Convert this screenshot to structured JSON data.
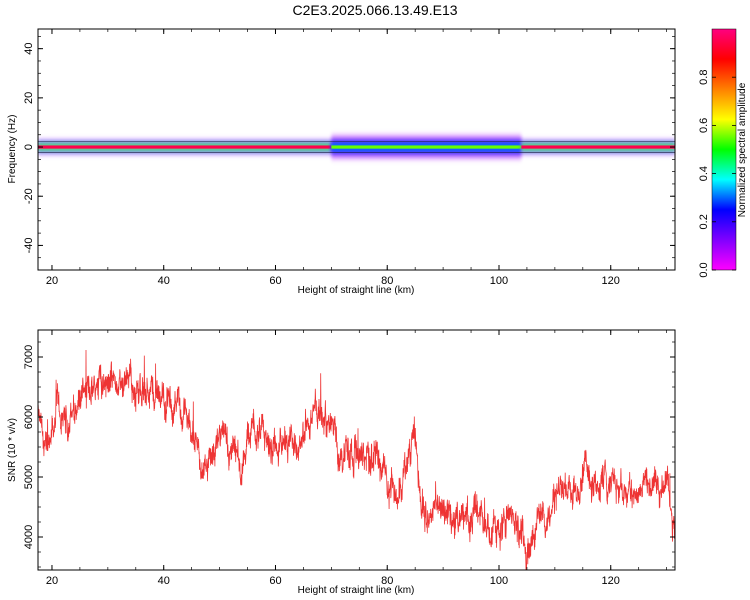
{
  "title": "C2E3.2025.066.13.49.E13",
  "chart_data": [
    {
      "type": "heatmap",
      "title": "",
      "xlabel": "Height of straight line (km)",
      "ylabel": "Frequency (Hz)",
      "xlim": [
        17.5,
        131.5
      ],
      "ylim": [
        -50,
        48
      ],
      "xticks": [
        20,
        40,
        60,
        80,
        100,
        120
      ],
      "yticks": [
        -40,
        -20,
        0,
        20,
        40
      ],
      "colorbar": {
        "label": "Normalized spectral amplitude",
        "range": [
          0.0,
          1.0
        ],
        "ticks": [
          0.0,
          0.2,
          0.4,
          0.6,
          0.8
        ],
        "colors": [
          "#ff00ff",
          "#8000ff",
          "#0000ff",
          "#00ffff",
          "#00ff00",
          "#ffff00",
          "#ff8000",
          "#ff0000",
          "#ff0080"
        ]
      },
      "ridges": [
        {
          "x_start": 17.5,
          "x_end": 70,
          "freq": 0.0,
          "peak_amplitude": 0.95,
          "halo_amplitude": 0.2,
          "halo_halfwidth_hz": 3
        },
        {
          "x_start": 70,
          "x_end": 104,
          "freq": 0.0,
          "peak_amplitude": 0.55,
          "halo_amplitude": 0.15,
          "halo_halfwidth_hz": 5
        },
        {
          "x_start": 104,
          "x_end": 131.5,
          "freq": 0.0,
          "peak_amplitude": 0.95,
          "halo_amplitude": 0.2,
          "halo_halfwidth_hz": 3
        }
      ]
    },
    {
      "type": "line",
      "title": "",
      "xlabel": "Height of straight line (km)",
      "ylabel": "SNR (10 * v/v)",
      "xlim": [
        17.5,
        131.5
      ],
      "ylim": [
        3450,
        7450
      ],
      "xticks": [
        20,
        40,
        60,
        80,
        100,
        120
      ],
      "yticks": [
        4000,
        5000,
        6000,
        7000
      ],
      "series": [
        {
          "color": "#ee3333",
          "x": [
            17.5,
            19,
            20,
            21,
            22,
            23,
            24,
            25,
            26,
            27,
            28,
            29,
            30,
            32,
            34,
            36,
            38,
            40,
            42,
            44,
            46,
            47,
            48,
            50,
            52,
            54,
            55,
            56,
            58,
            60,
            62,
            64,
            66,
            68,
            70,
            72,
            74,
            76,
            78,
            80,
            82,
            84,
            85,
            86,
            88,
            90,
            92,
            94,
            96,
            98,
            100,
            102,
            104,
            105,
            106,
            108,
            110,
            112,
            114,
            116,
            118,
            120,
            122,
            124,
            126,
            128,
            130,
            131.5
          ],
          "y": [
            6000,
            5300,
            5600,
            6200,
            5800,
            6000,
            6100,
            6300,
            6400,
            6500,
            6600,
            6700,
            6600,
            6500,
            6550,
            6500,
            6400,
            6350,
            6150,
            6000,
            5600,
            5100,
            5300,
            5700,
            5500,
            5000,
            5500,
            5800,
            5600,
            5450,
            5700,
            5600,
            5900,
            6100,
            5800,
            5450,
            5550,
            5300,
            5450,
            5000,
            4700,
            5300,
            5600,
            4600,
            4400,
            4550,
            4300,
            4350,
            4450,
            4250,
            4150,
            4350,
            4050,
            3800,
            4150,
            4250,
            4600,
            4900,
            4800,
            5100,
            4850,
            5000,
            4900,
            4750,
            4850,
            4650,
            4900,
            4200
          ]
        }
      ]
    }
  ]
}
